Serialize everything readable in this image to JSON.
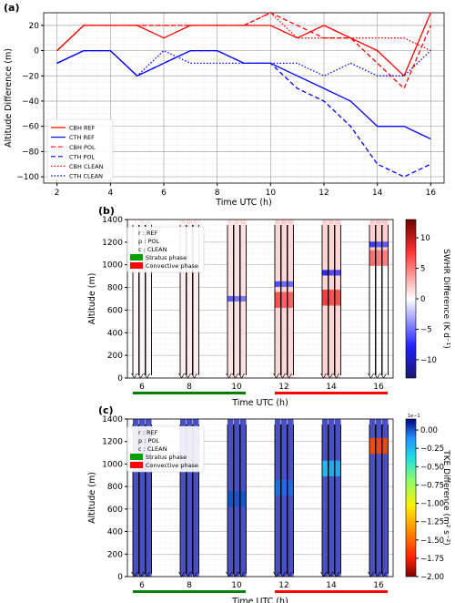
{
  "chart_data": [
    {
      "type": "line",
      "panel_label": "(a)",
      "xlabel": "Time UTC (h)",
      "ylabel": "Altitude Difference (m)",
      "xlim": [
        1.5,
        16.5
      ],
      "ylim": [
        -105,
        30
      ],
      "xticks": [
        2,
        4,
        6,
        8,
        10,
        12,
        14,
        16
      ],
      "yticks": [
        20,
        0,
        -20,
        -40,
        -60,
        -80,
        -100
      ],
      "grid": true,
      "legend_position": "bottom-left",
      "x": [
        2,
        3,
        4,
        5,
        6,
        7,
        8,
        9,
        10,
        11,
        12,
        13,
        14,
        15,
        16
      ],
      "series": [
        {
          "name": "CBH REF",
          "color": "#ff0000",
          "dash": "solid",
          "values": [
            0,
            20,
            20,
            20,
            10,
            20,
            20,
            20,
            20,
            10,
            20,
            10,
            0,
            -20,
            30
          ]
        },
        {
          "name": "CTH REF",
          "color": "#0000ff",
          "dash": "solid",
          "values": [
            -10,
            0,
            0,
            -20,
            -10,
            0,
            0,
            -10,
            -10,
            -20,
            -30,
            -40,
            -60,
            -60,
            -70
          ]
        },
        {
          "name": "CBH POL",
          "color": "#ff0000",
          "dash": "dashed",
          "values": [
            0,
            20,
            20,
            20,
            20,
            20,
            20,
            20,
            30,
            20,
            10,
            10,
            -10,
            -30,
            20
          ]
        },
        {
          "name": "CTH POL",
          "color": "#0000ff",
          "dash": "dashed",
          "values": [
            -10,
            0,
            0,
            -20,
            -10,
            0,
            0,
            -10,
            -10,
            -30,
            -40,
            -60,
            -90,
            -100,
            -90
          ]
        },
        {
          "name": "CBH CLEAN",
          "color": "#ff0000",
          "dash": "dotted",
          "values": [
            0,
            20,
            20,
            20,
            20,
            20,
            20,
            20,
            30,
            10,
            10,
            10,
            10,
            10,
            0
          ]
        },
        {
          "name": "CTH CLEAN",
          "color": "#0000ff",
          "dash": "dotted",
          "values": [
            -10,
            0,
            0,
            -20,
            0,
            -10,
            -10,
            -10,
            -10,
            -10,
            -20,
            -10,
            -20,
            -20,
            0
          ]
        }
      ]
    },
    {
      "type": "heatmap",
      "panel_label": "(b)",
      "xlabel": "Time UTC (h)",
      "ylabel": "Altitude (m)",
      "colorbar_label": "SWHR Difference (K d⁻¹)",
      "colorbar_ticks": [
        "10",
        "5",
        "0",
        "−5",
        "−10"
      ],
      "colorbar_range": [
        -13,
        13
      ],
      "ylim": [
        0,
        1400
      ],
      "yticks": [
        0,
        200,
        400,
        600,
        800,
        1000,
        1200,
        1400
      ],
      "xticks": [
        "6",
        "8",
        "10",
        "12",
        "14",
        "16"
      ],
      "column_labels": [
        "r",
        "p",
        "c"
      ],
      "legend": [
        {
          "text": "r : REF"
        },
        {
          "text": "p : POL"
        },
        {
          "text": "c : CLEAN"
        },
        {
          "text": "Stratus phase",
          "color": "#00a000"
        },
        {
          "text": "Convective phase",
          "color": "#ff0000"
        }
      ],
      "phase_bars": [
        {
          "name": "Stratus phase",
          "color": "#008000",
          "from": "6",
          "to": "10"
        },
        {
          "name": "Convective phase",
          "color": "#ff0000",
          "from": "12",
          "to": "16"
        }
      ],
      "features": [
        {
          "time": "6",
          "base": 0,
          "top": 1400,
          "value": 0.5,
          "top_value": 0
        },
        {
          "time": "8",
          "base": 0,
          "top": 1400,
          "value": 1.2,
          "top_value": 0
        },
        {
          "time": "10",
          "base": 0,
          "top": 1400,
          "value": 1.8,
          "top_value": -9,
          "top_level": 700
        },
        {
          "time": "12",
          "base": 0,
          "top": 1400,
          "value": 2.5,
          "peak": 10,
          "peak_level": 700,
          "top_value": -10,
          "top_level": 830
        },
        {
          "time": "14",
          "base": 0,
          "top": 1400,
          "value": 2.5,
          "peak": 11,
          "peak_level": 720,
          "top_value": -12,
          "top_level": 930
        },
        {
          "time": "16",
          "base": 1000,
          "top": 1400,
          "value": 3,
          "peak": 8,
          "peak_level": 1070,
          "top_value": -11,
          "top_level": 1180
        }
      ]
    },
    {
      "type": "heatmap",
      "panel_label": "(c)",
      "xlabel": "Time UTC (h)",
      "ylabel": "Altitude (m)",
      "colorbar_label": "TKE Difference (m² s⁻²)",
      "colorbar_ticks": [
        "0.00",
        "−0.25",
        "−0.50",
        "−0.75",
        "−1.00",
        "−1.25",
        "−1.50",
        "−1.75",
        "−2.00"
      ],
      "colorbar_range": [
        -2.0,
        0.15
      ],
      "colorbar_exponent": "1e−1",
      "ylim": [
        0,
        1400
      ],
      "yticks": [
        0,
        200,
        400,
        600,
        800,
        1000,
        1200,
        1400
      ],
      "xticks": [
        "6",
        "8",
        "10",
        "12",
        "14",
        "16"
      ],
      "column_labels": [
        "r",
        "p",
        "c"
      ],
      "legend": [
        {
          "text": "r : REF"
        },
        {
          "text": "p : POL"
        },
        {
          "text": "c : CLEAN"
        },
        {
          "text": "Stratus phase",
          "color": "#00a000"
        },
        {
          "text": "Convective phase",
          "color": "#ff0000"
        }
      ],
      "phase_bars": [
        {
          "name": "Stratus phase",
          "color": "#008000",
          "from": "6",
          "to": "10"
        },
        {
          "name": "Convective phase",
          "color": "#ff0000",
          "from": "12",
          "to": "16"
        }
      ],
      "features": [
        {
          "time": "6",
          "base": 0,
          "top": 1400,
          "value": 0.03
        },
        {
          "time": "8",
          "base": 0,
          "top": 1400,
          "value": 0.03
        },
        {
          "time": "10",
          "base": 0,
          "top": 1400,
          "value": 0.03,
          "peak": 0.0,
          "peak_level": 700
        },
        {
          "time": "12",
          "base": 0,
          "top": 1400,
          "value": 0.03,
          "peak": -0.05,
          "peak_level": 800
        },
        {
          "time": "14",
          "base": 0,
          "top": 1400,
          "value": 0.03,
          "peak": -0.25,
          "peak_level": 970
        },
        {
          "time": "16",
          "base": 0,
          "top": 1400,
          "value": 0.03,
          "peak": -1.6,
          "peak_level": 1170
        }
      ]
    }
  ]
}
